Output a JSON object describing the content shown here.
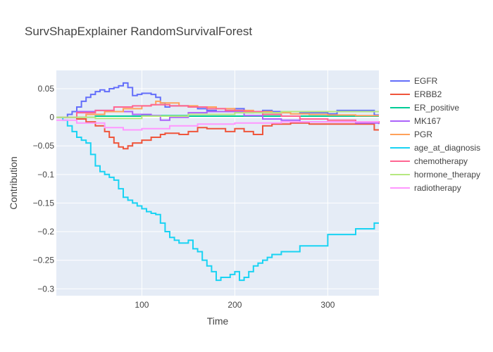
{
  "chart_data": {
    "type": "line",
    "title": "SurvShapExplainer RandomSurvivalForest",
    "xlabel": "Time",
    "ylabel": "Contribution",
    "xlim": [
      8,
      355
    ],
    "ylim": [
      -0.312,
      0.082
    ],
    "xticks": [
      100,
      200,
      300
    ],
    "yticks": [
      0.05,
      0,
      -0.05,
      -0.1,
      -0.15,
      -0.2,
      -0.25,
      -0.3
    ],
    "ytick_labels": [
      "0.05",
      "0",
      "−0.05",
      "−0.1",
      "−0.15",
      "−0.2",
      "−0.25",
      "−0.3"
    ],
    "grid": true,
    "legend_position": "right",
    "line_shape": "step",
    "background_color": "#E5ECF6",
    "series": [
      {
        "name": "EGFR",
        "color": "#636EFA",
        "x": [
          8,
          20,
          25,
          30,
          35,
          40,
          45,
          50,
          55,
          60,
          65,
          70,
          75,
          80,
          85,
          90,
          95,
          100,
          110,
          115,
          120,
          125,
          130,
          140,
          150,
          160,
          170,
          180,
          190,
          200,
          210,
          220,
          230,
          240,
          250,
          260,
          270,
          280,
          290,
          300,
          310,
          320,
          330,
          340,
          350,
          355
        ],
        "y": [
          0,
          0.005,
          0.01,
          0.018,
          0.028,
          0.035,
          0.04,
          0.045,
          0.048,
          0.045,
          0.05,
          0.052,
          0.055,
          0.06,
          0.052,
          0.038,
          0.04,
          0.042,
          0.04,
          0.035,
          0.025,
          0.018,
          0.02,
          0.02,
          0.018,
          0.015,
          0.012,
          0.01,
          0.012,
          0.015,
          0.008,
          0.01,
          0.012,
          0.01,
          0.01,
          0.01,
          0.008,
          0.008,
          0.008,
          0.006,
          0.012,
          0.012,
          0.012,
          0.012,
          0.004,
          0.004
        ]
      },
      {
        "name": "ERBB2",
        "color": "#EF553B",
        "x": [
          8,
          30,
          40,
          50,
          60,
          65,
          70,
          75,
          80,
          85,
          90,
          100,
          110,
          120,
          125,
          140,
          150,
          160,
          170,
          180,
          190,
          200,
          210,
          220,
          230,
          240,
          250,
          260,
          280,
          300,
          330,
          350,
          355
        ],
        "y": [
          0,
          -0.003,
          -0.008,
          -0.015,
          -0.025,
          -0.035,
          -0.045,
          -0.052,
          -0.055,
          -0.05,
          -0.045,
          -0.04,
          -0.035,
          -0.03,
          -0.028,
          -0.03,
          -0.025,
          -0.018,
          -0.02,
          -0.02,
          -0.025,
          -0.02,
          -0.025,
          -0.03,
          -0.015,
          -0.012,
          -0.012,
          -0.01,
          -0.012,
          -0.012,
          -0.012,
          -0.022,
          -0.022
        ]
      },
      {
        "name": "ER_positive",
        "color": "#00CC96",
        "x": [
          8,
          50,
          100,
          150,
          200,
          250,
          300,
          355
        ],
        "y": [
          0,
          0.002,
          0.003,
          0.002,
          0.002,
          0.002,
          0.002,
          0.002
        ]
      },
      {
        "name": "MK167",
        "color": "#AB63FA",
        "x": [
          8,
          30,
          50,
          70,
          90,
          110,
          120,
          130,
          150,
          170,
          190,
          210,
          230,
          250,
          270,
          300,
          330,
          355
        ],
        "y": [
          0,
          0.01,
          0.012,
          0.01,
          0.005,
          0.003,
          -0.005,
          0,
          0.008,
          0.01,
          0.01,
          0.003,
          -0.003,
          -0.005,
          -0.008,
          -0.008,
          -0.01,
          -0.012
        ]
      },
      {
        "name": "PGR",
        "color": "#FFA15A",
        "x": [
          8,
          40,
          60,
          80,
          100,
          110,
          115,
          120,
          140,
          160,
          180,
          200,
          220,
          240,
          260,
          280,
          300,
          330,
          355
        ],
        "y": [
          0,
          0.005,
          0.01,
          0.015,
          0.02,
          0.022,
          0.028,
          0.025,
          0.02,
          0.018,
          0.015,
          0.012,
          0.01,
          0.008,
          0.006,
          0.005,
          0.004,
          0.003,
          0.003
        ]
      },
      {
        "name": "age_at_diagnosis",
        "color": "#19D3F3",
        "x": [
          8,
          15,
          20,
          25,
          30,
          35,
          40,
          45,
          50,
          55,
          60,
          65,
          70,
          75,
          80,
          85,
          90,
          95,
          100,
          105,
          110,
          115,
          120,
          125,
          130,
          135,
          140,
          145,
          150,
          155,
          160,
          165,
          170,
          175,
          180,
          185,
          190,
          195,
          200,
          205,
          210,
          215,
          220,
          225,
          230,
          235,
          240,
          250,
          260,
          270,
          280,
          290,
          300,
          310,
          320,
          330,
          340,
          350,
          355
        ],
        "y": [
          0,
          -0.005,
          -0.015,
          -0.025,
          -0.035,
          -0.04,
          -0.045,
          -0.065,
          -0.085,
          -0.095,
          -0.1,
          -0.105,
          -0.11,
          -0.125,
          -0.14,
          -0.145,
          -0.15,
          -0.155,
          -0.16,
          -0.165,
          -0.168,
          -0.17,
          -0.185,
          -0.2,
          -0.21,
          -0.215,
          -0.22,
          -0.22,
          -0.215,
          -0.23,
          -0.235,
          -0.25,
          -0.26,
          -0.27,
          -0.285,
          -0.28,
          -0.28,
          -0.275,
          -0.27,
          -0.285,
          -0.28,
          -0.27,
          -0.26,
          -0.255,
          -0.25,
          -0.245,
          -0.24,
          -0.235,
          -0.235,
          -0.225,
          -0.225,
          -0.225,
          -0.205,
          -0.205,
          -0.205,
          -0.195,
          -0.195,
          -0.185,
          -0.185
        ]
      },
      {
        "name": "chemotherapy",
        "color": "#FF6692",
        "x": [
          8,
          30,
          50,
          70,
          90,
          110,
          130,
          150,
          170,
          190,
          210,
          230,
          250,
          270,
          300,
          330,
          355
        ],
        "y": [
          0,
          0.008,
          0.012,
          0.018,
          0.02,
          0.022,
          0.02,
          0.018,
          0.015,
          0.012,
          0.01,
          0.005,
          0.002,
          -0.003,
          -0.005,
          -0.008,
          -0.01
        ]
      },
      {
        "name": "hormone_therapy",
        "color": "#B6E880",
        "x": [
          8,
          50,
          100,
          150,
          200,
          250,
          300,
          355
        ],
        "y": [
          0,
          -0.002,
          0.002,
          0.005,
          0.008,
          0.01,
          0.01,
          0.01
        ]
      },
      {
        "name": "radiotherapy",
        "color": "#FF97FF",
        "x": [
          8,
          30,
          60,
          80,
          100,
          130,
          160,
          200,
          250,
          300,
          355
        ],
        "y": [
          -0.005,
          -0.01,
          -0.018,
          -0.022,
          -0.02,
          -0.015,
          -0.012,
          -0.01,
          -0.008,
          -0.008,
          -0.008
        ]
      }
    ]
  }
}
